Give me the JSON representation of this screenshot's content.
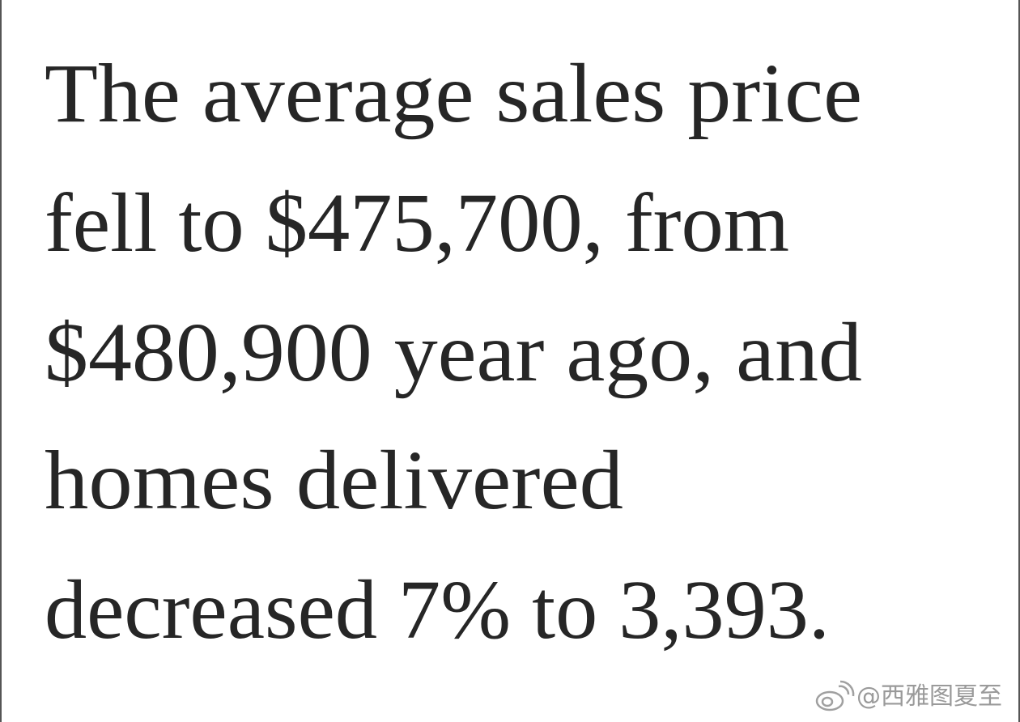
{
  "text": {
    "lines": [
      "The average sales price",
      "fell to $475,700, from",
      "$480,900 year ago, and",
      "homes delivered",
      "decreased 7% to 3,393."
    ]
  },
  "watermark": "@西雅图夏至"
}
